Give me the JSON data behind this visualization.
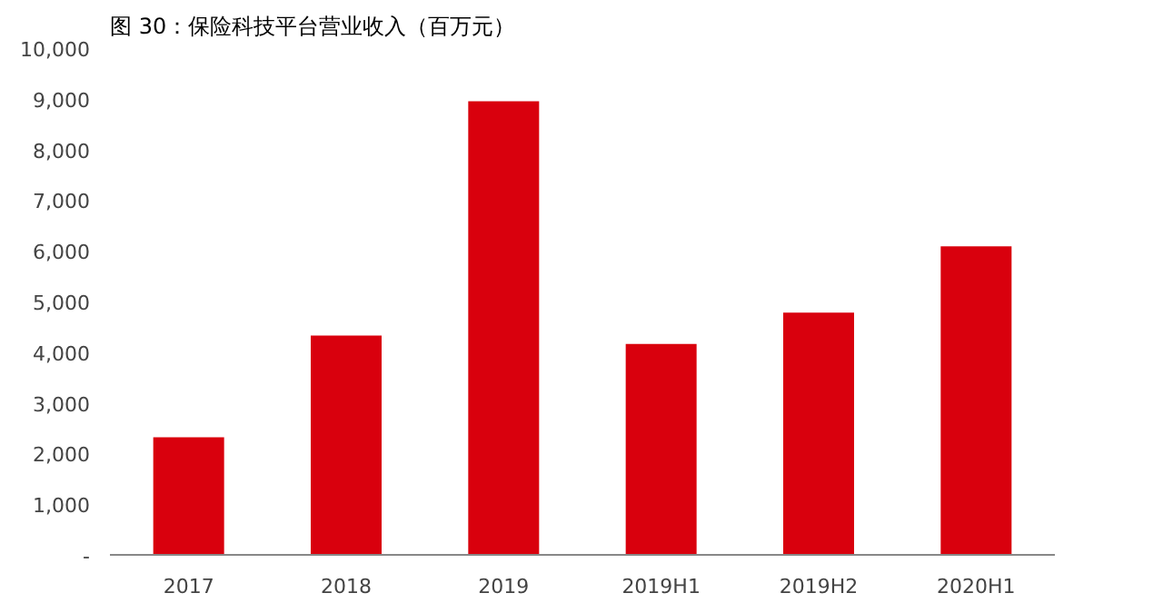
{
  "chart_data": {
    "type": "bar",
    "title": "图 30：保险科技平台营业收入（百万元）",
    "categories": [
      "2017",
      "2018",
      "2019",
      "2019H1",
      "2019H2",
      "2020H1"
    ],
    "values": [
      2320,
      4330,
      8950,
      4160,
      4780,
      6090
    ],
    "color": "#d9000d",
    "ylim": [
      0,
      10000
    ],
    "yticks": [
      {
        "value": 0,
        "label": "-"
      },
      {
        "value": 1000,
        "label": "1,000"
      },
      {
        "value": 2000,
        "label": "2,000"
      },
      {
        "value": 3000,
        "label": "3,000"
      },
      {
        "value": 4000,
        "label": "4,000"
      },
      {
        "value": 5000,
        "label": "5,000"
      },
      {
        "value": 6000,
        "label": "6,000"
      },
      {
        "value": 7000,
        "label": "7,000"
      },
      {
        "value": 8000,
        "label": "8,000"
      },
      {
        "value": 9000,
        "label": "9,000"
      },
      {
        "value": 10000,
        "label": "10,000"
      }
    ],
    "grid": false
  }
}
